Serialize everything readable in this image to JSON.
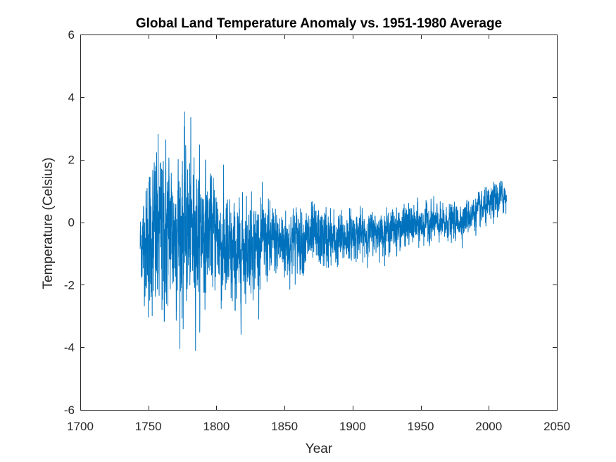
{
  "chart_data": {
    "type": "line",
    "title": "Global Land Temperature Anomaly vs. 1951-1980 Average",
    "xlabel": "Year",
    "ylabel": "Temperature (Celsius)",
    "xlim": [
      1700,
      2050
    ],
    "ylim": [
      -6,
      6
    ],
    "x_ticks": [
      1700,
      1750,
      1800,
      1850,
      1900,
      1950,
      2000,
      2050
    ],
    "y_ticks": [
      -6,
      -4,
      -2,
      0,
      2,
      4,
      6
    ],
    "grid": false,
    "line_color": "#0072BD",
    "frequency": "monthly",
    "x_range": [
      1744,
      2013
    ],
    "series": [
      {
        "x": [
          1744,
          1750,
          1755,
          1760,
          1765,
          1770,
          1775,
          1780,
          1785,
          1790,
          1795,
          1800,
          1805,
          1810,
          1815,
          1820,
          1825,
          1830,
          1835,
          1840,
          1845,
          1850,
          1855,
          1860,
          1865,
          1870,
          1875,
          1880,
          1885,
          1890,
          1895,
          1900,
          1905,
          1910,
          1915,
          1920,
          1925,
          1930,
          1935,
          1940,
          1945,
          1950,
          1955,
          1960,
          1965,
          1970,
          1975,
          1980,
          1985,
          1990,
          1995,
          2000,
          2005,
          2010,
          2013
        ],
        "y": [
          -0.7,
          -0.6,
          -0.5,
          -0.4,
          -0.2,
          -0.3,
          -0.2,
          -0.3,
          -0.3,
          -0.2,
          -0.3,
          -0.3,
          -0.9,
          -1.1,
          -1.2,
          -0.8,
          -0.7,
          -0.7,
          -0.6,
          -0.7,
          -0.6,
          -0.7,
          -0.6,
          -0.5,
          -0.6,
          -0.5,
          -0.5,
          -0.5,
          -0.6,
          -0.6,
          -0.5,
          -0.4,
          -0.4,
          -0.4,
          -0.3,
          -0.3,
          -0.3,
          -0.2,
          -0.2,
          -0.1,
          -0.1,
          -0.1,
          0.0,
          0.0,
          -0.1,
          0.0,
          0.0,
          0.1,
          0.2,
          0.3,
          0.4,
          0.5,
          0.7,
          0.8,
          0.9
        ],
        "spread": [
          1.4,
          2.8,
          3.4,
          3.6,
          3.2,
          3.0,
          3.4,
          3.2,
          2.8,
          2.6,
          2.2,
          2.2,
          2.4,
          2.3,
          2.2,
          2.0,
          1.8,
          1.7,
          1.6,
          1.5,
          1.5,
          1.4,
          1.4,
          1.3,
          1.3,
          1.3,
          1.2,
          1.2,
          1.1,
          1.1,
          1.0,
          0.9,
          0.9,
          0.9,
          0.8,
          0.8,
          0.8,
          0.8,
          0.8,
          0.8,
          0.8,
          0.8,
          0.8,
          0.7,
          0.7,
          0.7,
          0.7,
          0.7,
          0.7,
          0.7,
          0.7,
          0.7,
          0.7,
          0.7,
          0.7
        ]
      }
    ]
  }
}
